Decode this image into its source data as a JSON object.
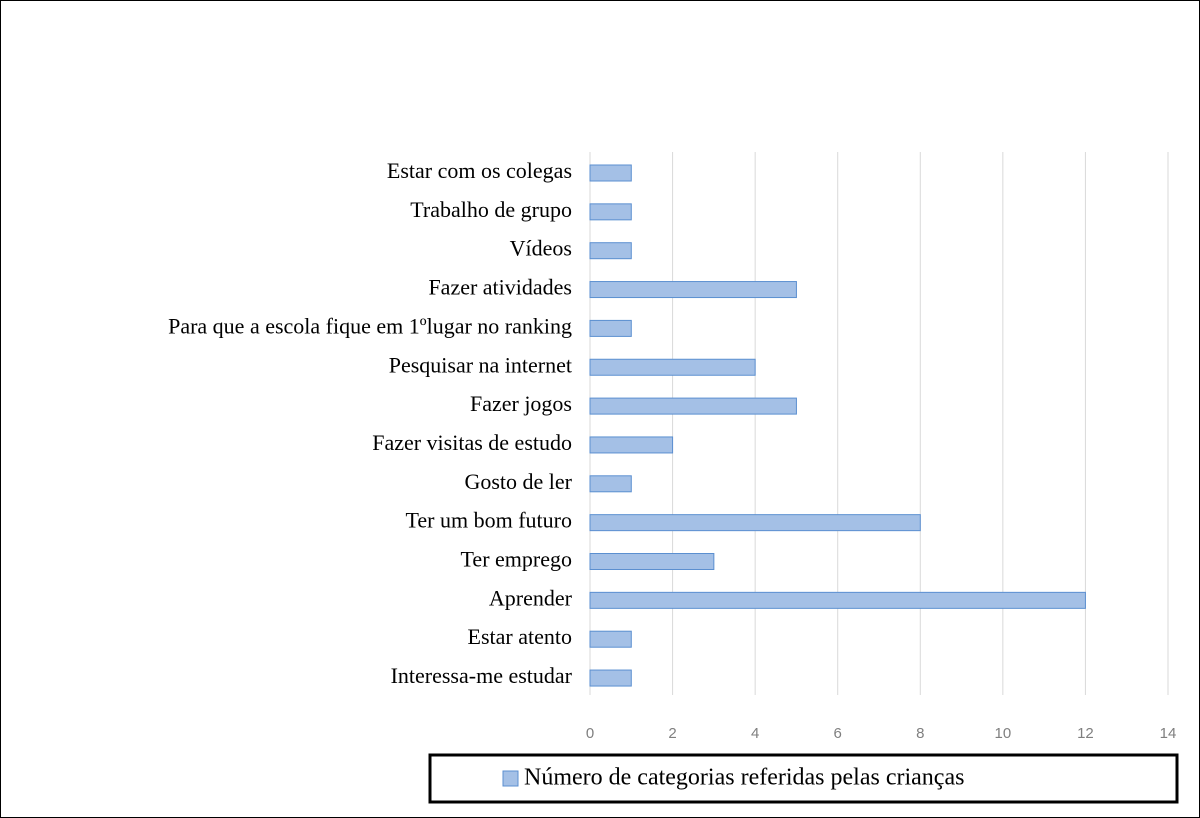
{
  "chart_data": {
    "type": "bar",
    "orientation": "horizontal",
    "categories": [
      "Estar com os colegas",
      "Trabalho de grupo",
      "Vídeos",
      "Fazer atividades",
      "Para que a escola fique em 1ºlugar no ranking",
      "Pesquisar na internet",
      "Fazer jogos",
      "Fazer visitas de estudo",
      "Gosto de ler",
      "Ter um bom futuro",
      "Ter emprego",
      "Aprender",
      "Estar atento",
      "Interessa-me estudar"
    ],
    "series": [
      {
        "name": "Número de categorias referidas pelas crianças",
        "color": "#a4c0e6",
        "values": [
          1,
          1,
          1,
          5,
          1,
          4,
          5,
          2,
          1,
          8,
          3,
          12,
          1,
          1
        ]
      }
    ],
    "xlim": [
      0,
      14
    ],
    "xticks": [
      0,
      2,
      4,
      6,
      8,
      10,
      12,
      14
    ],
    "grid": true,
    "legend": "bottom"
  }
}
